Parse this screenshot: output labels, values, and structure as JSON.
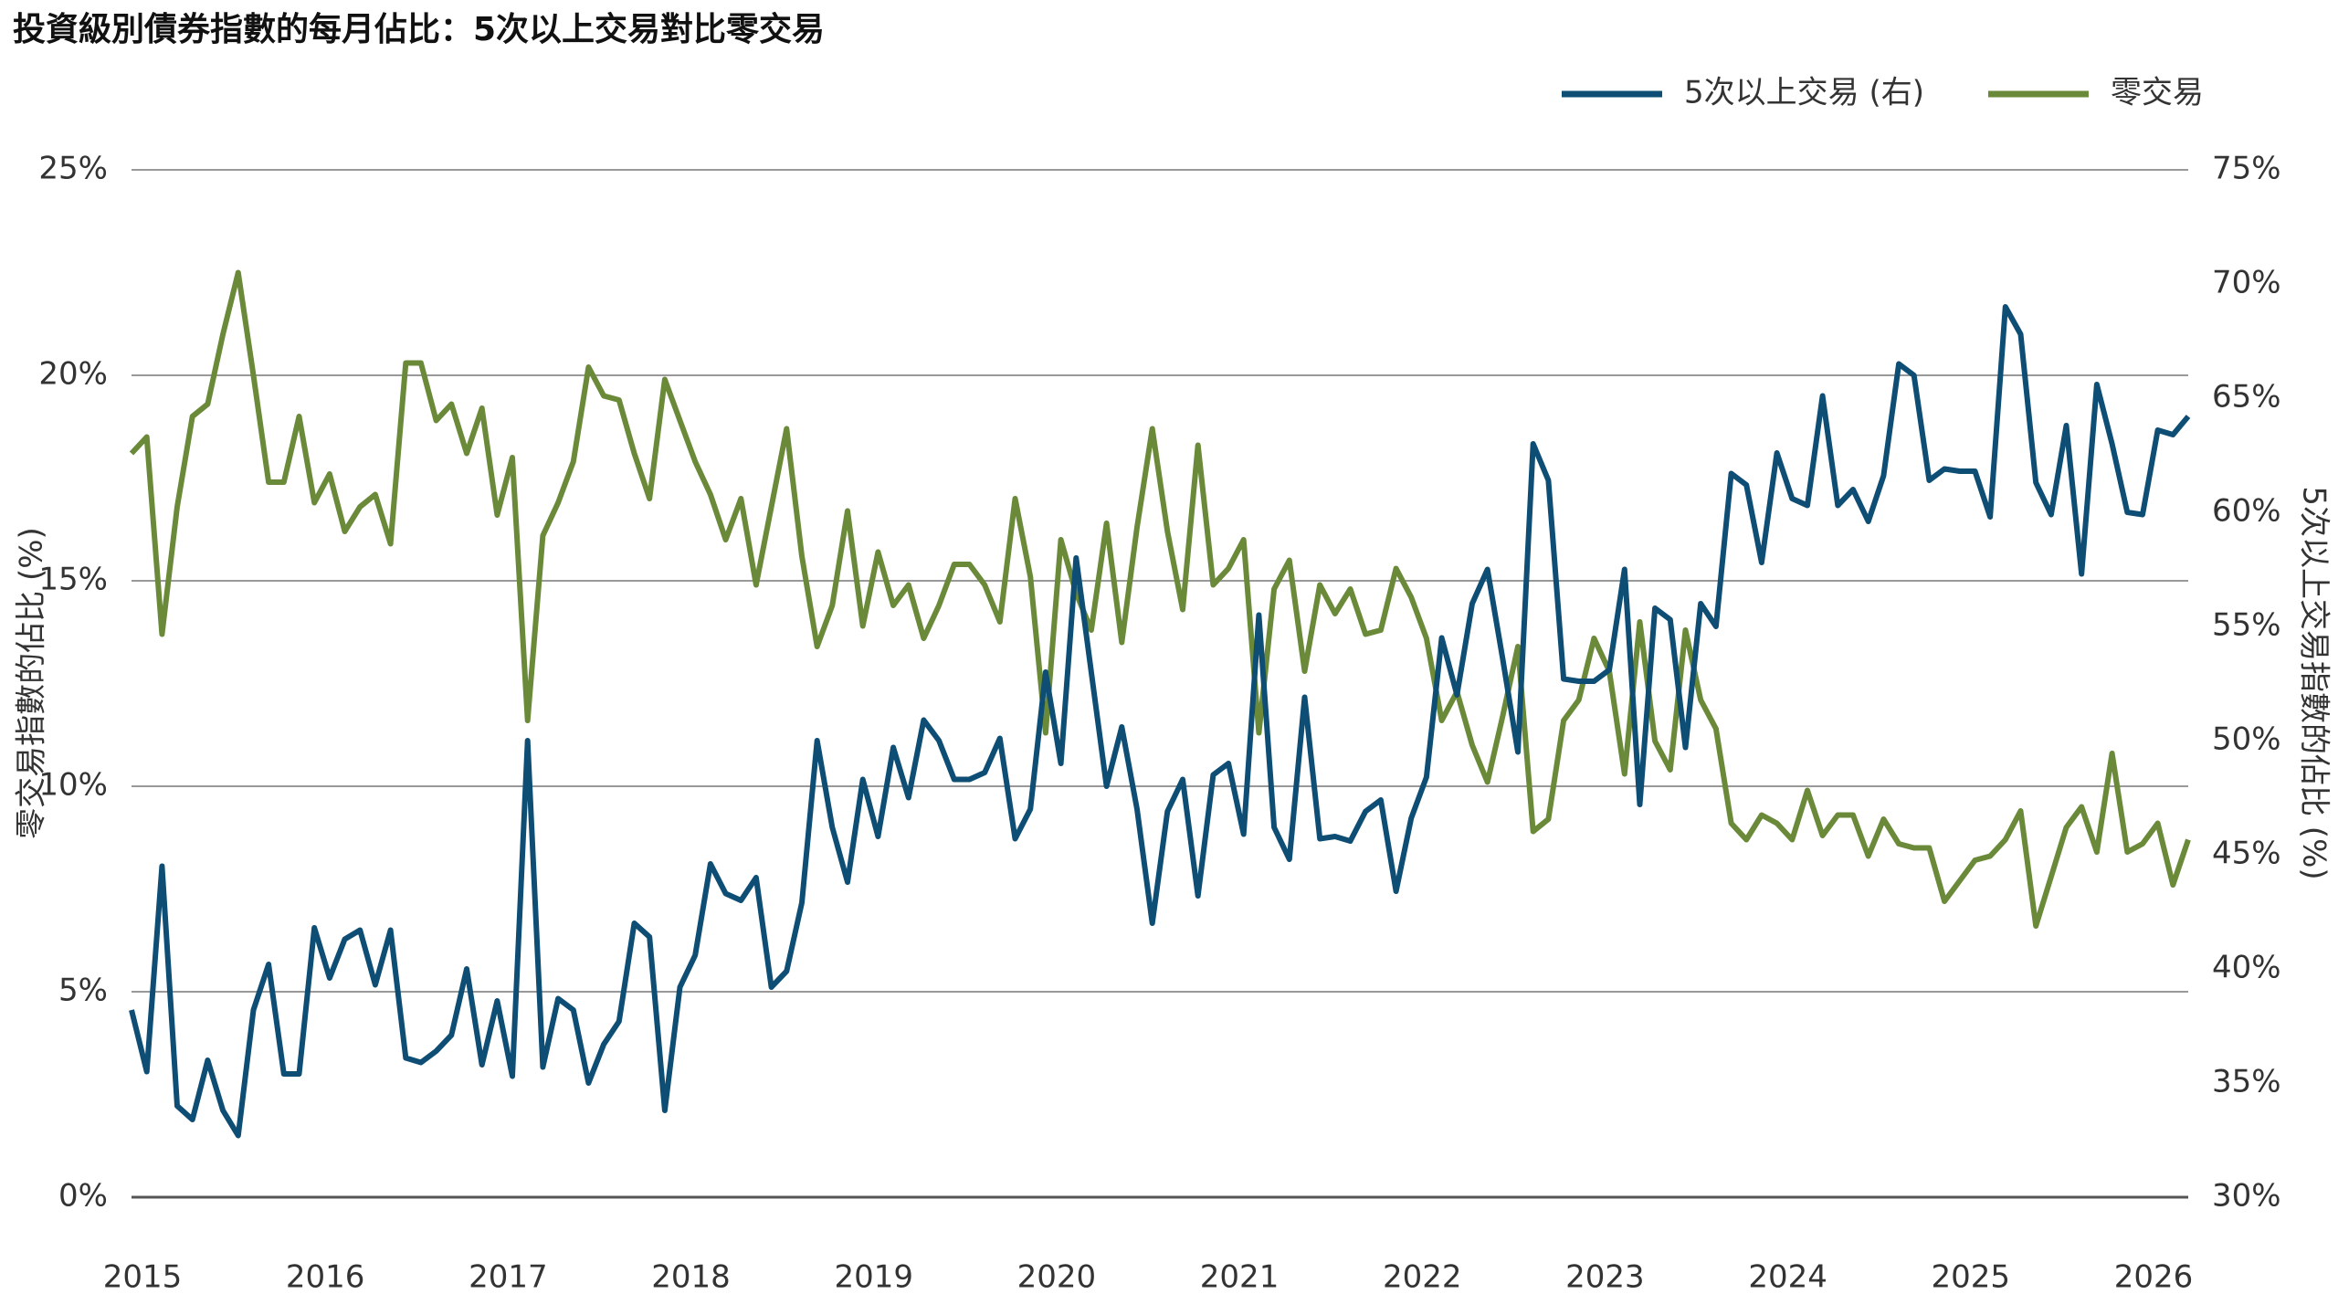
{
  "chart_data": {
    "type": "line",
    "title": "投資級別債券指數的每月佔比：5次以上交易對比零交易",
    "ylabel": "零交易指數的佔比 (%)",
    "y2label": "5次以上交易指數的佔比 (%)",
    "legend": "top-right",
    "grid": true,
    "categories": [
      "2015",
      null,
      null,
      null,
      null,
      null,
      null,
      null,
      null,
      null,
      null,
      null,
      "2016",
      null,
      null,
      null,
      null,
      null,
      null,
      null,
      null,
      null,
      null,
      null,
      "2017",
      null,
      null,
      null,
      null,
      null,
      null,
      null,
      null,
      null,
      null,
      null,
      "2018",
      null,
      null,
      null,
      null,
      null,
      null,
      null,
      null,
      null,
      null,
      null,
      "2019",
      null,
      null,
      null,
      null,
      null,
      null,
      null,
      null,
      null,
      null,
      null,
      "2020",
      null,
      null,
      null,
      null,
      null,
      null,
      null,
      null,
      null,
      null,
      null,
      "2021",
      null,
      null,
      null,
      null,
      null,
      null,
      null,
      null,
      null,
      null,
      null,
      "2022",
      null,
      null,
      null,
      null,
      null,
      null,
      null,
      null,
      null,
      null,
      null,
      "2023",
      null,
      null,
      null,
      null,
      null,
      null,
      null,
      null,
      null,
      null,
      null,
      "2024",
      null,
      null,
      null,
      null,
      null,
      null,
      null,
      null,
      null,
      null,
      null,
      "2025",
      null,
      null,
      null,
      null,
      null,
      null,
      null,
      null,
      null,
      null,
      null,
      "2026",
      null,
      null,
      null
    ],
    "ylim": [
      0,
      25
    ],
    "yticks": [
      {
        "value": 0,
        "label": "0%"
      },
      {
        "value": 5,
        "label": "5%"
      },
      {
        "value": 10,
        "label": "10%"
      },
      {
        "value": 15,
        "label": "15%"
      },
      {
        "value": 20,
        "label": "20%"
      },
      {
        "value": 25,
        "label": "25%"
      }
    ],
    "y2lim": [
      30,
      75
    ],
    "y2ticks": [
      {
        "value": 30,
        "label": "30%"
      },
      {
        "value": 35,
        "label": "35%"
      },
      {
        "value": 40,
        "label": "40%"
      },
      {
        "value": 45,
        "label": "45%"
      },
      {
        "value": 50,
        "label": "50%"
      },
      {
        "value": 55,
        "label": "55%"
      },
      {
        "value": 60,
        "label": "60%"
      },
      {
        "value": 65,
        "label": "65%"
      },
      {
        "value": 70,
        "label": "70%"
      },
      {
        "value": 75,
        "label": "75%"
      }
    ],
    "series": [
      {
        "name": "5次以上交易 (右)",
        "color": "#0e4d74",
        "axis": "y2",
        "values": [
          38.2,
          35.5,
          44.5,
          34.0,
          33.4,
          36.0,
          33.8,
          32.7,
          38.2,
          40.2,
          35.4,
          35.4,
          41.8,
          39.6,
          41.3,
          41.7,
          39.3,
          41.7,
          36.1,
          35.9,
          36.4,
          37.1,
          40.0,
          35.8,
          38.6,
          35.3,
          50.0,
          35.7,
          38.7,
          38.2,
          35.0,
          36.7,
          37.7,
          42.0,
          41.4,
          33.8,
          39.2,
          40.6,
          44.6,
          43.3,
          43.0,
          44.0,
          39.2,
          39.9,
          42.9,
          50.0,
          46.2,
          43.8,
          48.3,
          45.8,
          49.7,
          47.5,
          50.9,
          50.0,
          48.3,
          48.3,
          48.6,
          50.1,
          45.7,
          47.0,
          53.0,
          49.0,
          58.0,
          53.0,
          48.0,
          50.6,
          47.0,
          42.0,
          46.9,
          48.3,
          43.2,
          48.5,
          49.0,
          45.9,
          55.5,
          46.2,
          44.8,
          51.9,
          45.7,
          45.8,
          45.6,
          46.9,
          47.4,
          43.4,
          46.6,
          48.4,
          54.5,
          52.0,
          56.0,
          57.5,
          53.6,
          49.5,
          63.0,
          61.4,
          52.7,
          52.6,
          52.6,
          53.1,
          57.5,
          47.2,
          55.8,
          55.3,
          49.7,
          56.0,
          55.0,
          61.7,
          61.2,
          57.8,
          62.6,
          60.6,
          60.3,
          65.1,
          60.3,
          61.0,
          59.6,
          61.6,
          66.5,
          66.0,
          61.4,
          61.9,
          61.8,
          61.8,
          59.8,
          69.0,
          67.8,
          61.3,
          59.9,
          63.8,
          57.3,
          65.6,
          63.0,
          60.0,
          59.9,
          63.6,
          63.4,
          64.2
        ]
      },
      {
        "name": "零交易",
        "color": "#6a8a3a",
        "values": [
          18.1,
          18.5,
          13.7,
          16.8,
          19.0,
          19.3,
          21.0,
          22.5,
          20.0,
          17.4,
          17.4,
          19.0,
          16.9,
          17.6,
          16.2,
          16.8,
          17.1,
          15.9,
          20.3,
          20.3,
          18.9,
          19.3,
          18.1,
          19.2,
          16.6,
          18.0,
          11.6,
          16.1,
          16.9,
          17.9,
          20.2,
          19.5,
          19.4,
          18.1,
          17.0,
          19.9,
          18.9,
          17.9,
          17.1,
          16.0,
          17.0,
          14.9,
          16.8,
          18.7,
          15.6,
          13.4,
          14.4,
          16.7,
          13.9,
          15.7,
          14.4,
          14.9,
          13.6,
          14.4,
          15.4,
          15.4,
          14.9,
          14.0,
          17.0,
          15.1,
          11.3,
          16.0,
          14.7,
          13.8,
          16.4,
          13.5,
          16.3,
          18.7,
          16.2,
          14.3,
          18.3,
          14.9,
          15.3,
          16.0,
          11.3,
          14.8,
          15.5,
          12.8,
          14.9,
          14.2,
          14.8,
          13.7,
          13.8,
          15.3,
          14.6,
          13.6,
          11.6,
          12.3,
          11.0,
          10.1,
          11.7,
          13.4,
          8.9,
          9.2,
          11.6,
          12.1,
          13.6,
          12.8,
          10.3,
          14.0,
          11.1,
          10.4,
          13.8,
          12.1,
          11.4,
          9.1,
          8.7,
          9.3,
          9.1,
          8.7,
          9.9,
          8.8,
          9.3,
          9.3,
          8.3,
          9.2,
          8.6,
          8.5,
          8.5,
          7.2,
          7.7,
          8.2,
          8.3,
          8.7,
          9.4,
          6.6,
          7.8,
          9.0,
          9.5,
          8.4,
          10.8,
          8.4,
          8.6,
          9.1,
          7.6,
          8.7
        ]
      }
    ]
  }
}
